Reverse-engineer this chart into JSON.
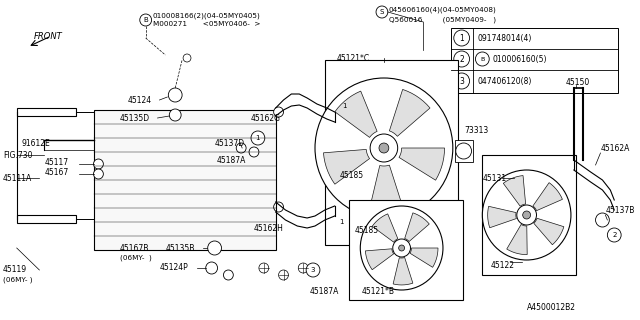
{
  "background_color": "#ffffff",
  "line_color": "#000000",
  "text_color": "#000000",
  "figsize": [
    6.4,
    3.2
  ],
  "dpi": 100,
  "xlim": [
    0,
    640
  ],
  "ylim": [
    0,
    320
  ]
}
